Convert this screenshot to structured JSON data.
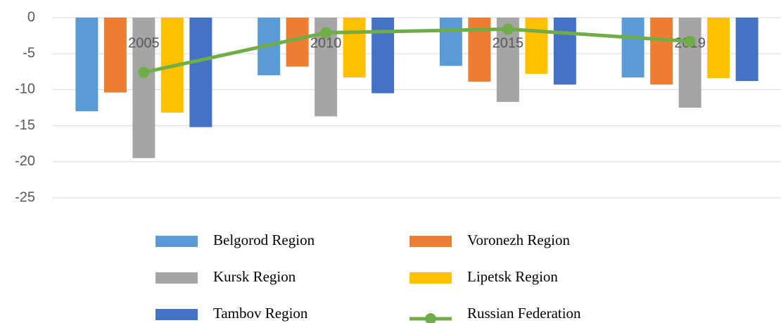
{
  "chart_data": {
    "type": "bar",
    "categories": [
      "2005",
      "2010",
      "2015",
      "2019"
    ],
    "series": [
      {
        "name": "Belgorod Region",
        "color": "#5b9bd5",
        "values": [
          -13,
          -8,
          -6.7,
          -8.3
        ]
      },
      {
        "name": "Voronezh Region",
        "color": "#ed7d31",
        "values": [
          -10.4,
          -6.8,
          -8.9,
          -9.3
        ]
      },
      {
        "name": "Kursk Region",
        "color": "#a5a5a5",
        "values": [
          -19.5,
          -13.7,
          -11.7,
          -12.5
        ]
      },
      {
        "name": "Lipetsk Region",
        "color": "#ffc000",
        "values": [
          -13.2,
          -8.3,
          -7.8,
          -8.4
        ]
      },
      {
        "name": "Tambov Region",
        "color": "#4472c4",
        "values": [
          -15.2,
          -10.5,
          -9.3,
          -8.8
        ]
      },
      {
        "name": "Russian Federation",
        "color": "#70ad47",
        "type": "line",
        "values": [
          -7.6,
          -2.1,
          -1.6,
          -3.3
        ]
      }
    ],
    "ylim": [
      -25,
      0
    ],
    "yticks": [
      0,
      -5,
      -10,
      -15,
      -20,
      -25
    ],
    "grid": true,
    "legend": "bottom"
  }
}
